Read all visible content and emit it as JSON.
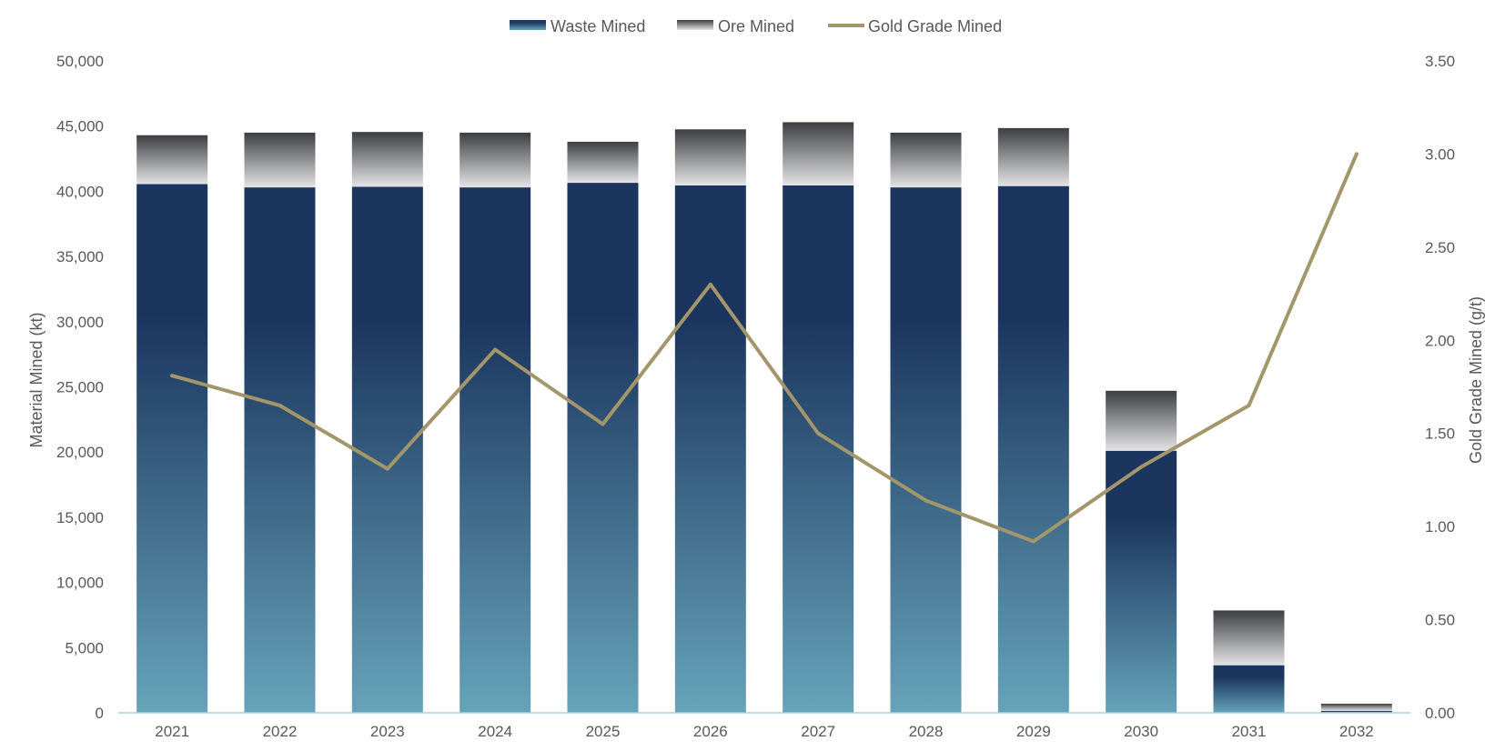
{
  "chart_data": {
    "type": "bar",
    "stacked": true,
    "categories": [
      "2021",
      "2022",
      "2023",
      "2024",
      "2025",
      "2026",
      "2027",
      "2028",
      "2029",
      "2030",
      "2031",
      "2032"
    ],
    "series": [
      {
        "name": "Waste Mined",
        "axis": "left",
        "values": [
          40550,
          40300,
          40350,
          40300,
          40650,
          40450,
          40450,
          40300,
          40400,
          20100,
          3650,
          150
        ]
      },
      {
        "name": "Ore Mined",
        "axis": "left",
        "values": [
          3750,
          4200,
          4200,
          4200,
          3150,
          4300,
          4850,
          4200,
          4450,
          4600,
          4200,
          550
        ]
      },
      {
        "name": "Gold Grade Mined",
        "axis": "right",
        "type": "line",
        "values": [
          1.81,
          1.65,
          1.31,
          1.95,
          1.55,
          2.3,
          1.5,
          1.14,
          0.92,
          1.32,
          1.65,
          3.0
        ]
      }
    ],
    "ylabel": "Material Mined (kt)",
    "y2label": "Gold Grade Mined (g/t)",
    "ylim": [
      0,
      50000
    ],
    "y2lim": [
      0,
      3.5
    ],
    "yticks": [
      "0",
      "5,000",
      "10,000",
      "15,000",
      "20,000",
      "25,000",
      "30,000",
      "35,000",
      "40,000",
      "45,000",
      "50,000"
    ],
    "y2ticks": [
      "0.00",
      "0.50",
      "1.00",
      "1.50",
      "2.00",
      "2.50",
      "3.00",
      "3.50"
    ],
    "legend_position": "top",
    "colors": {
      "waste_top": "#1b355e",
      "waste_bottom": "#66a3b9",
      "ore_top": "#3c3e41",
      "ore_bottom": "#e4e4e6",
      "line": "#a3966b",
      "axis_line": "#a9cfdf",
      "tick_text": "#595959"
    }
  }
}
